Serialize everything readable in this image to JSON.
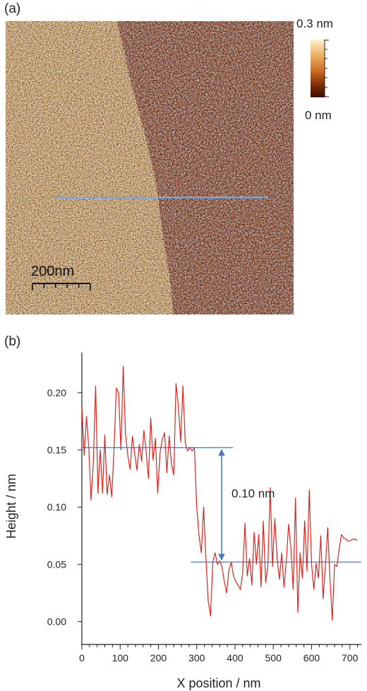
{
  "panel_a": {
    "label": "(a)",
    "colorbar": {
      "max_label": "0.3 nm",
      "min_label": "0 nm",
      "gradient": [
        "#fff3d2",
        "#f0b56a",
        "#c96a22",
        "#7a2a06",
        "#3a0c02"
      ]
    },
    "scale_bar": {
      "label": "200nm"
    },
    "profile_line_color": "#7ba7d8",
    "terrace_colors": {
      "upper": "#efbd75",
      "lower": "#a5501a"
    }
  },
  "panel_b": {
    "label": "(b)",
    "annotation": {
      "text": "0.10 nm",
      "levels": [
        0.152,
        0.052
      ]
    },
    "line_color": "#e0241b",
    "level_line_color": "#4a78c8"
  },
  "chart_data": {
    "type": "line",
    "title": "",
    "xlabel": "X position / nm",
    "ylabel": "Height / nm",
    "xlim": [
      0,
      730
    ],
    "ylim": [
      -0.02,
      0.235
    ],
    "xticks": [
      0,
      100,
      200,
      300,
      400,
      500,
      600,
      700
    ],
    "yticks": [
      0.0,
      0.05,
      0.1,
      0.15,
      0.2
    ],
    "ytick_labels": [
      "0.00",
      "0.05",
      "0.10",
      "0.15",
      "0.20"
    ],
    "series": [
      {
        "x": [
          0,
          6,
          12,
          18,
          24,
          30,
          36,
          42,
          48,
          54,
          60,
          66,
          72,
          78,
          84,
          90,
          96,
          102,
          108,
          114,
          120,
          126,
          132,
          138,
          144,
          150,
          156,
          162,
          168,
          174,
          180,
          186,
          192,
          198,
          204,
          210,
          216,
          222,
          228,
          234,
          240,
          246,
          252,
          258,
          264,
          270,
          276,
          282,
          288,
          294,
          300,
          306,
          312,
          318,
          324,
          330,
          336,
          342,
          348,
          354,
          360,
          366,
          372,
          378,
          384,
          390,
          396,
          402,
          408,
          414,
          420,
          426,
          432,
          438,
          444,
          450,
          456,
          462,
          468,
          474,
          480,
          486,
          492,
          498,
          504,
          510,
          516,
          522,
          528,
          534,
          540,
          546,
          552,
          558,
          564,
          570,
          576,
          582,
          588,
          594,
          600,
          606,
          612,
          618,
          624,
          630,
          636,
          642,
          648,
          654,
          660,
          666,
          672,
          678,
          684,
          690,
          696,
          702,
          708,
          714,
          720
        ],
        "y": [
          0.187,
          0.145,
          0.179,
          0.152,
          0.106,
          0.14,
          0.206,
          0.112,
          0.15,
          0.112,
          0.163,
          0.111,
          0.128,
          0.109,
          0.151,
          0.204,
          0.2,
          0.15,
          0.223,
          0.164,
          0.145,
          0.133,
          0.162,
          0.147,
          0.132,
          0.155,
          0.14,
          0.167,
          0.148,
          0.125,
          0.178,
          0.141,
          0.16,
          0.112,
          0.147,
          0.159,
          0.165,
          0.13,
          0.162,
          0.138,
          0.128,
          0.208,
          0.188,
          0.157,
          0.206,
          0.156,
          0.149,
          0.152,
          0.149,
          0.152,
          0.1,
          0.075,
          0.06,
          0.1,
          0.055,
          0.018,
          0.005,
          0.052,
          0.06,
          0.05,
          0.053,
          0.048,
          0.035,
          0.025,
          0.045,
          0.052,
          0.04,
          0.035,
          0.032,
          0.028,
          0.042,
          0.086,
          0.04,
          0.055,
          0.032,
          0.078,
          0.05,
          0.076,
          0.03,
          0.088,
          0.034,
          0.05,
          0.117,
          0.048,
          0.09,
          0.055,
          0.037,
          0.06,
          0.03,
          0.053,
          0.085,
          0.064,
          0.028,
          0.108,
          0.008,
          0.06,
          0.038,
          0.088,
          0.044,
          0.115,
          0.05,
          0.028,
          0.051,
          0.038,
          0.075,
          0.02,
          0.048,
          0.082,
          0.038,
          0.001,
          0.05,
          0.048,
          0.063,
          0.076,
          0.073,
          0.072,
          0.07,
          0.071,
          0.072,
          0.072,
          0.071
        ]
      }
    ],
    "grid": false,
    "legend": "none"
  }
}
